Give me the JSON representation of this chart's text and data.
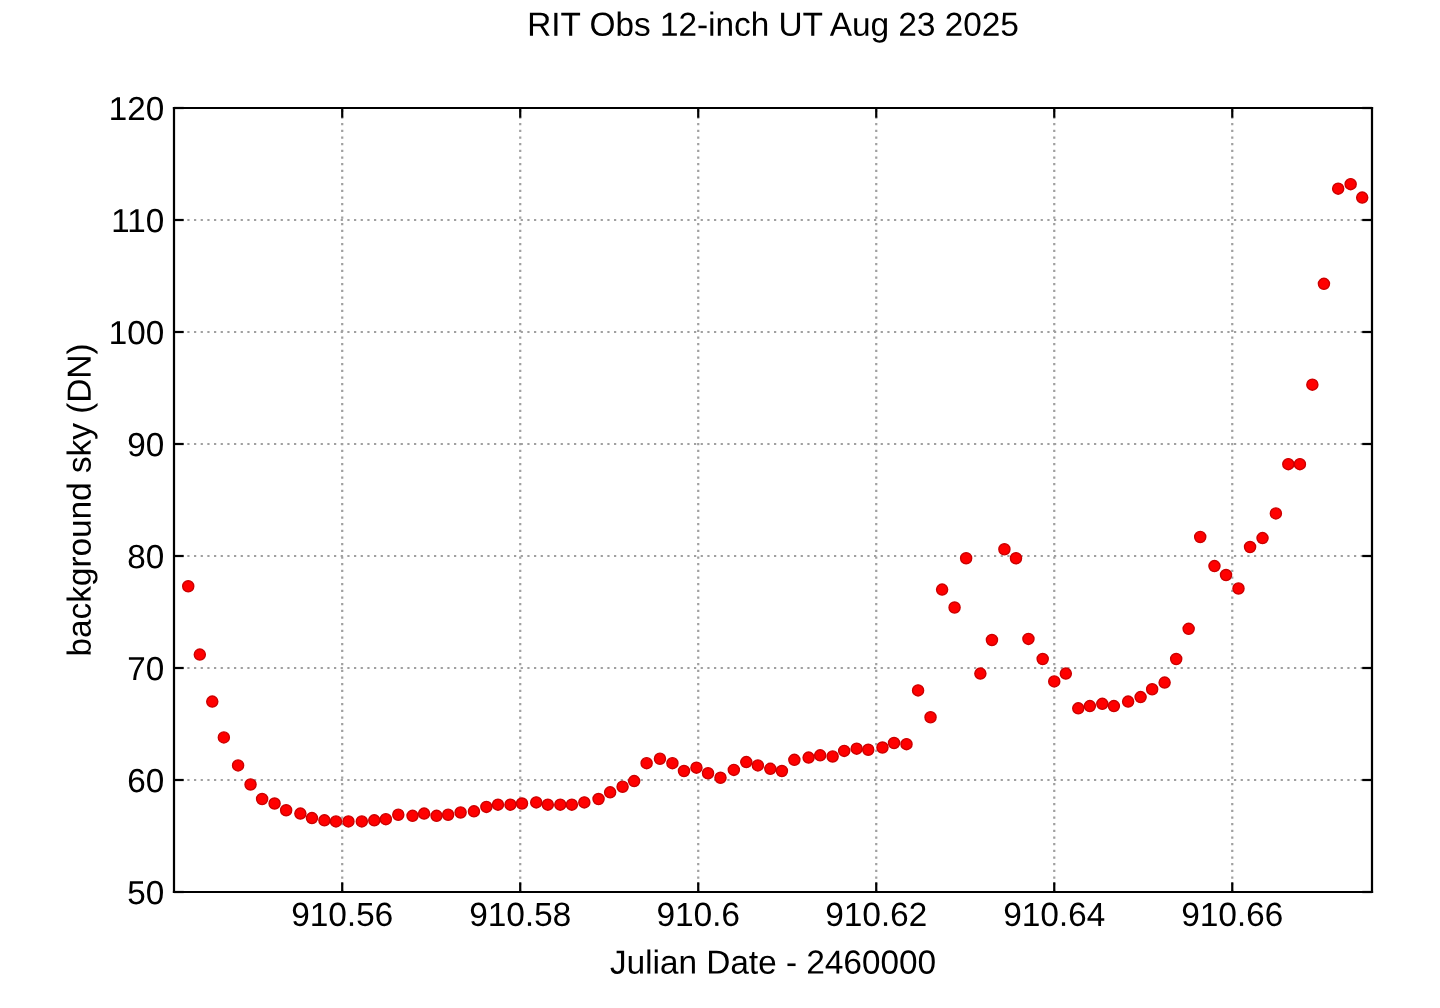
{
  "chart_data": {
    "type": "scatter",
    "title": "RIT Obs 12-inch UT Aug 23 2025",
    "xlabel": "Julian Date - 2460000",
    "ylabel": "background sky (DN)",
    "x": [
      910.5427,
      910.544,
      910.5454,
      910.5467,
      910.5483,
      910.5497,
      910.551,
      910.5524,
      910.5537,
      910.5553,
      910.5566,
      910.558,
      910.5593,
      910.5607,
      910.5622,
      910.5636,
      910.5649,
      910.5663,
      910.5679,
      910.5692,
      910.5706,
      910.5719,
      910.5733,
      910.5748,
      910.5762,
      910.5775,
      910.5789,
      910.5802,
      910.5818,
      910.5831,
      910.5845,
      910.5858,
      910.5872,
      910.5888,
      910.5901,
      910.5915,
      910.5928,
      910.5942,
      910.5957,
      910.5971,
      910.5984,
      910.5998,
      910.6011,
      910.6025,
      910.604,
      910.6054,
      910.6067,
      910.6081,
      910.6094,
      910.6108,
      910.6124,
      910.6137,
      910.6151,
      910.6164,
      910.6178,
      910.6191,
      910.6207,
      910.622,
      910.6234,
      910.6247,
      910.6261,
      910.6274,
      910.6288,
      910.6301,
      910.6317,
      910.633,
      910.6344,
      910.6357,
      910.6371,
      910.6387,
      910.64,
      910.6413,
      910.6427,
      910.644,
      910.6454,
      910.6467,
      910.6483,
      910.6497,
      910.651,
      910.6524,
      910.6537,
      910.6551,
      910.6564,
      910.658,
      910.6593,
      910.6607,
      910.662,
      910.6634,
      910.6649,
      910.6663,
      910.6676,
      910.669,
      910.6703,
      910.6719,
      910.6733,
      910.6746
    ],
    "series": [
      {
        "color": "#ff0000",
        "values": [
          77.3,
          71.2,
          67.0,
          63.8,
          61.3,
          59.6,
          58.3,
          57.9,
          57.3,
          57.0,
          56.6,
          56.4,
          56.3,
          56.3,
          56.3,
          56.4,
          56.5,
          56.9,
          56.8,
          57.0,
          56.8,
          56.9,
          57.1,
          57.2,
          57.6,
          57.8,
          57.8,
          57.9,
          58.0,
          57.8,
          57.8,
          57.8,
          58.0,
          58.3,
          58.9,
          59.4,
          59.9,
          61.5,
          61.9,
          61.5,
          60.8,
          61.1,
          60.6,
          60.2,
          60.9,
          61.6,
          61.3,
          61.0,
          60.8,
          61.8,
          62.0,
          62.2,
          62.1,
          62.6,
          62.8,
          62.7,
          62.9,
          63.3,
          63.2,
          68.0,
          65.6,
          77.0,
          75.4,
          79.8,
          69.5,
          72.5,
          80.6,
          79.8,
          72.6,
          70.8,
          68.8,
          69.5,
          66.4,
          66.6,
          66.8,
          66.6,
          67.0,
          67.4,
          68.1,
          68.7,
          70.8,
          73.5,
          81.7,
          79.1,
          78.3,
          77.1,
          80.8,
          81.6,
          83.8,
          88.2,
          88.2,
          95.3,
          104.3,
          112.8,
          113.2,
          112.0
        ]
      }
    ],
    "xlim": [
      910.5411,
      910.6757
    ],
    "xticks": [
      910.56,
      910.58,
      910.6,
      910.62,
      910.64,
      910.66
    ],
    "ylim": [
      50,
      120
    ],
    "yticks": [
      50,
      60,
      70,
      80,
      90,
      100,
      110,
      120
    ],
    "grid": true,
    "marker": "circle"
  }
}
